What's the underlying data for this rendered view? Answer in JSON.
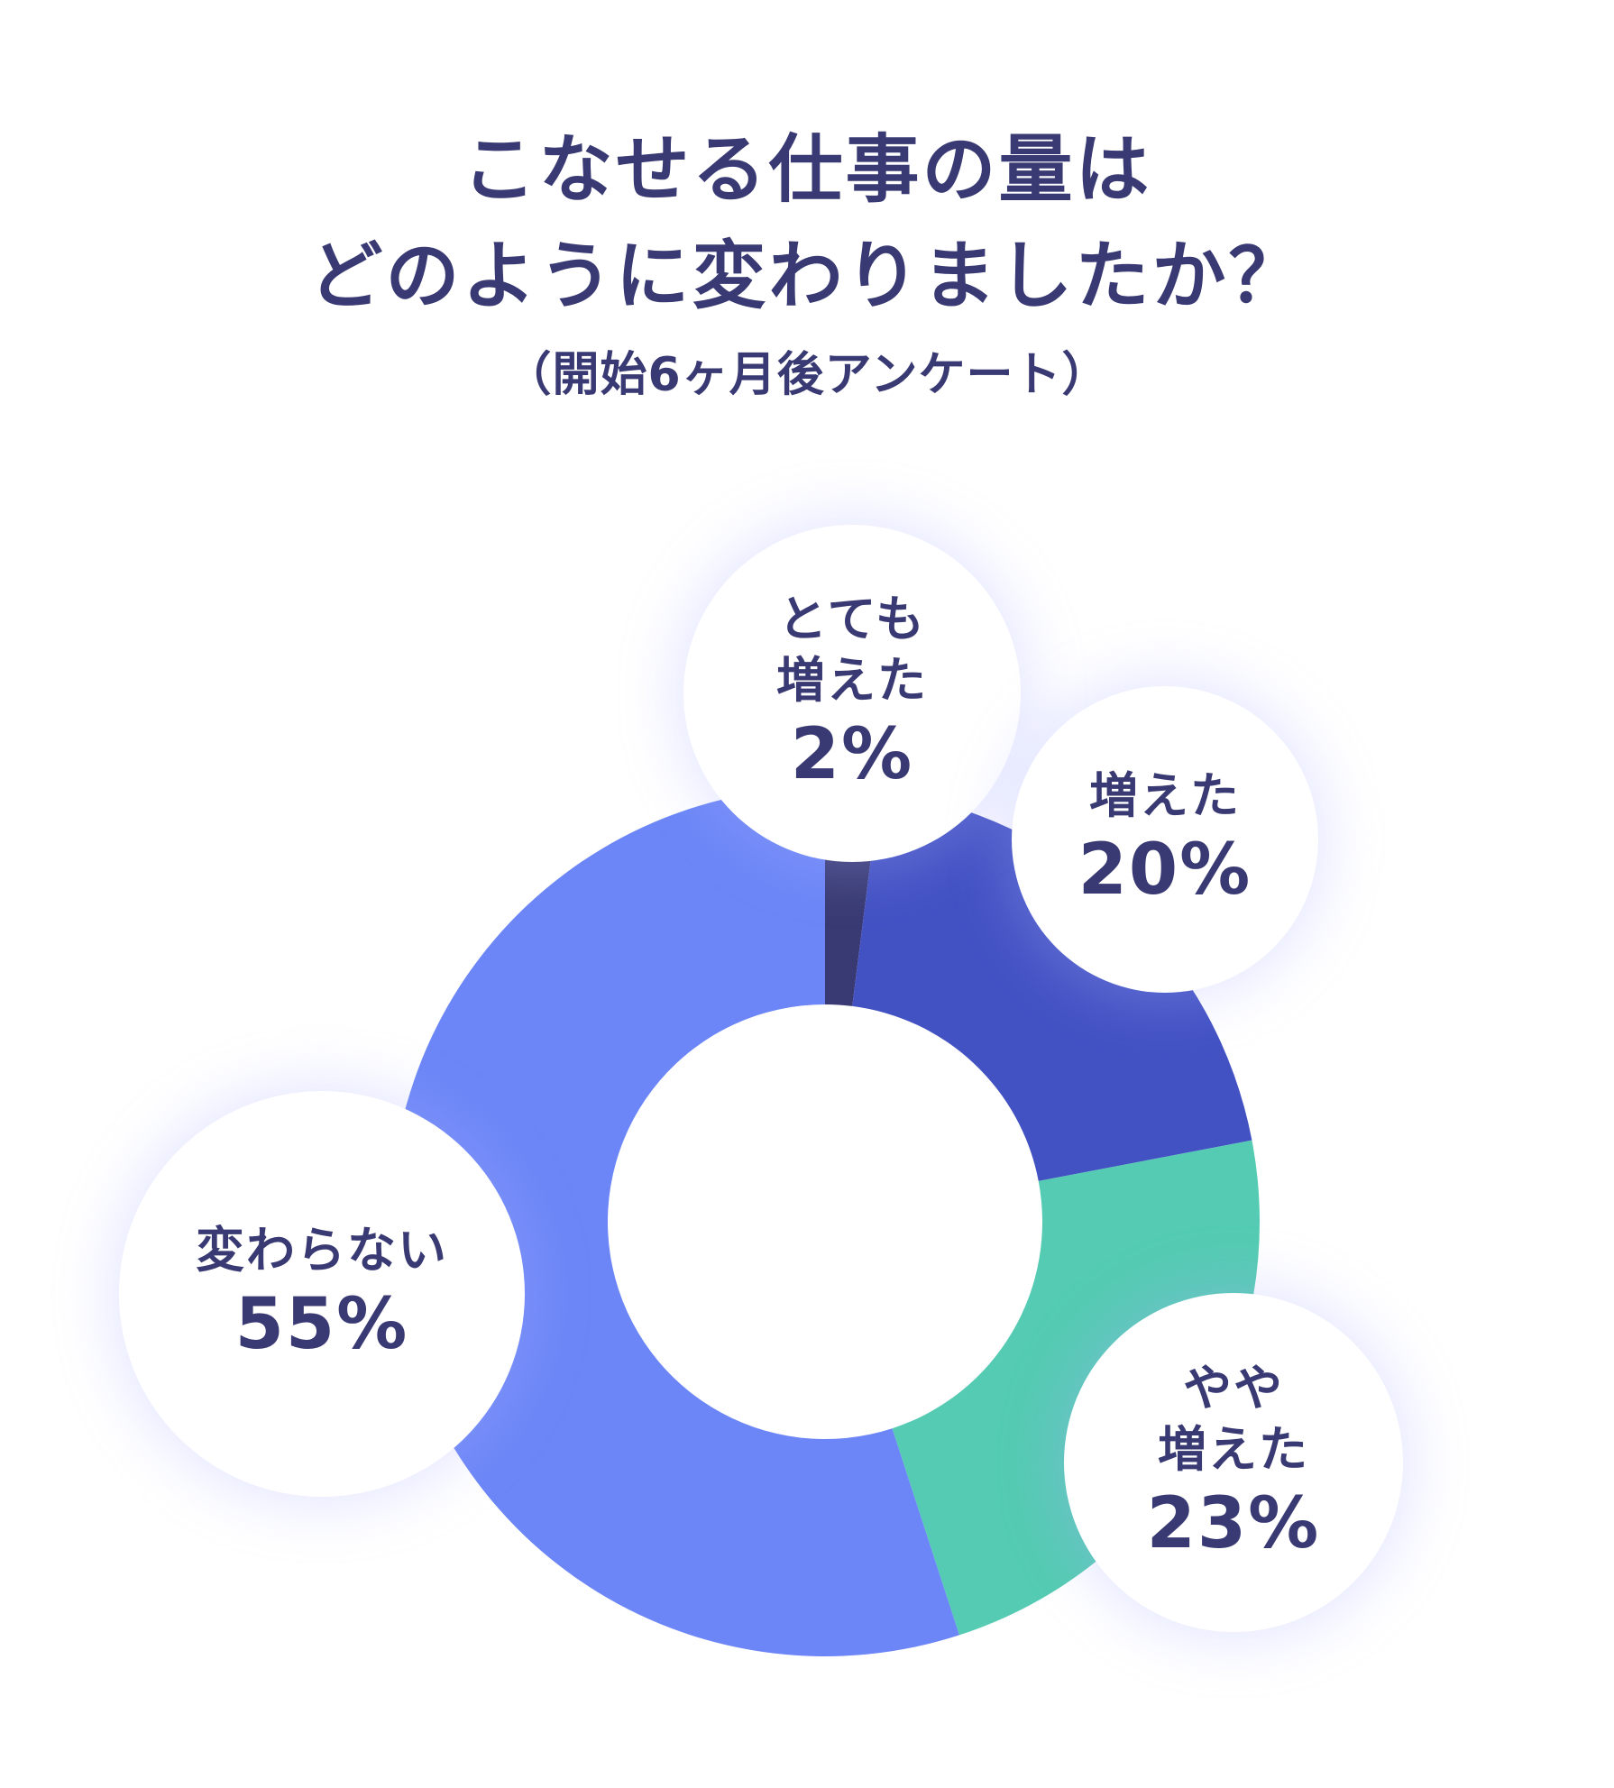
{
  "chart_data": {
    "type": "pie",
    "title_lines": [
      "こなせる仕事の量は",
      "どのように変わりましたか？"
    ],
    "subtitle": "（開始6ヶ月後アンケート）",
    "start_angle_deg": 0,
    "direction": "clockwise",
    "slices": [
      {
        "label_lines": [
          "とても",
          "増えた"
        ],
        "value": 2,
        "value_text": "2%",
        "color": "#393a73"
      },
      {
        "label_lines": [
          "増えた"
        ],
        "value": 20,
        "value_text": "20%",
        "color": "#4352c3"
      },
      {
        "label_lines": [
          "やや",
          "増えた"
        ],
        "value": 23,
        "value_text": "23%",
        "color": "#54cbb2"
      },
      {
        "label_lines": [
          "変わらない"
        ],
        "value": 55,
        "value_text": "55%",
        "color": "#6c86f7"
      }
    ]
  }
}
